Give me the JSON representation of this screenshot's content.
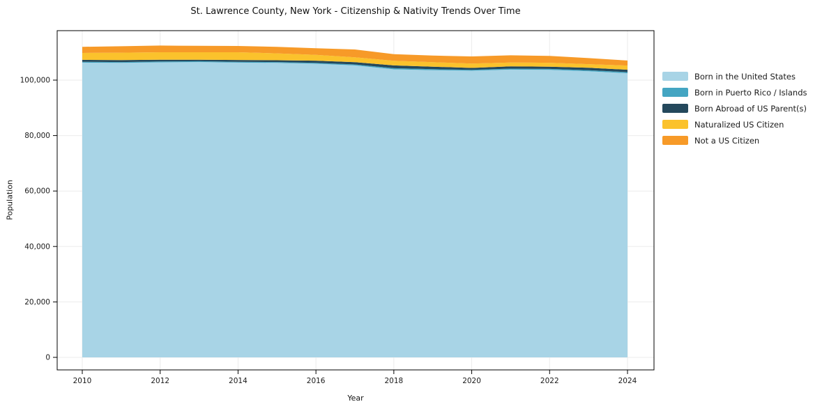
{
  "title": "St. Lawrence County, New York - Citizenship & Nativity Trends Over Time",
  "chart_data": {
    "type": "area",
    "stacked": true,
    "title": "St. Lawrence County, New York - Citizenship & Nativity Trends Over Time",
    "xlabel": "Year",
    "ylabel": "Population",
    "x": [
      2010,
      2011,
      2012,
      2013,
      2014,
      2015,
      2016,
      2017,
      2018,
      2019,
      2020,
      2021,
      2022,
      2023,
      2024
    ],
    "series": [
      {
        "name": "Born in the United States",
        "color": "#a8d4e6",
        "values": [
          106300,
          106200,
          106400,
          106500,
          106300,
          106200,
          105900,
          105300,
          103900,
          103600,
          103400,
          103800,
          103700,
          103200,
          102500
        ]
      },
      {
        "name": "Born in Puerto Rico / Islands",
        "color": "#44a5c2",
        "values": [
          300,
          300,
          300,
          300,
          300,
          300,
          300,
          350,
          400,
          350,
          300,
          350,
          350,
          400,
          400
        ]
      },
      {
        "name": "Born Abroad of US Parent(s)",
        "color": "#24485c",
        "values": [
          700,
          700,
          650,
          550,
          650,
          650,
          800,
          800,
          1000,
          900,
          700,
          800,
          800,
          850,
          850
        ]
      },
      {
        "name": "Naturalized US Citizen",
        "color": "#fbc22c",
        "values": [
          2500,
          2700,
          2700,
          2700,
          2800,
          2500,
          2100,
          1800,
          1650,
          1600,
          1550,
          1400,
          1400,
          1300,
          1500
        ]
      },
      {
        "name": "Not a US Citizen",
        "color": "#f79a28",
        "values": [
          2200,
          2300,
          2400,
          2300,
          2250,
          2350,
          2400,
          2800,
          2400,
          2400,
          2600,
          2600,
          2500,
          2200,
          1800
        ]
      }
    ],
    "xticks": [
      2010,
      2012,
      2014,
      2016,
      2018,
      2020,
      2022,
      2024
    ],
    "xtick_labels": [
      "2010",
      "2012",
      "2014",
      "2016",
      "2018",
      "2020",
      "2022",
      "2024"
    ],
    "yticks": [
      0,
      20000,
      40000,
      60000,
      80000,
      100000
    ],
    "ytick_labels": [
      "0",
      "20,000",
      "40,000",
      "60,000",
      "80,000",
      "100,000"
    ],
    "ylim": [
      -4500,
      117800
    ],
    "grid": true,
    "legend_position": "right-outside",
    "colors": {
      "grid": "#ebebeb",
      "frame": "#000000",
      "text": "#1a1a1a"
    }
  }
}
